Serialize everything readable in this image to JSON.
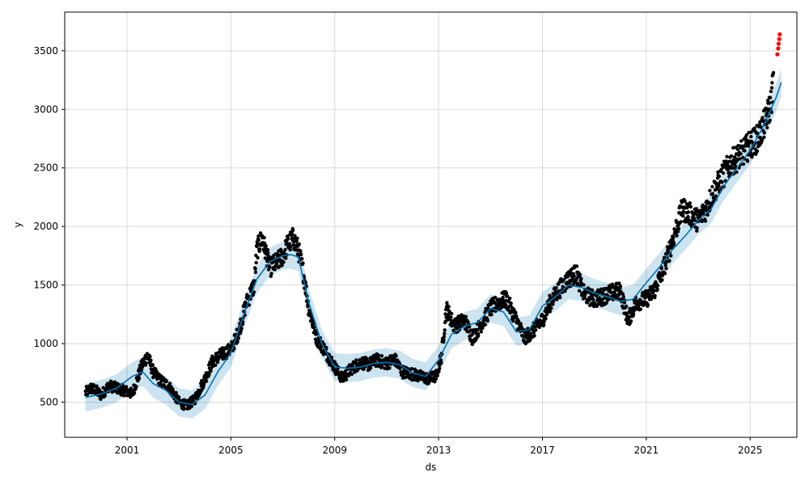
{
  "chart_data": {
    "type": "scatter",
    "title": "",
    "xlabel": "ds",
    "ylabel": "y",
    "x_is_year": true,
    "xlim": [
      1998.6,
      2026.8
    ],
    "ylim": [
      200,
      3830
    ],
    "x_ticks": [
      2001,
      2005,
      2009,
      2013,
      2017,
      2021,
      2025
    ],
    "x_tick_labels": [
      "2001",
      "2005",
      "2009",
      "2013",
      "2017",
      "2021",
      "2025"
    ],
    "y_ticks": [
      500,
      1000,
      1500,
      2000,
      2500,
      3000,
      3500
    ],
    "y_tick_labels": [
      "500",
      "1000",
      "1500",
      "2000",
      "2500",
      "3000",
      "3500"
    ],
    "grid": true,
    "colors": {
      "observed": "#000000",
      "forecast_line": "#0072b2",
      "uncertainty_band": "#0072b2",
      "changepoint_points": "#ff0000"
    },
    "series": [
      {
        "role": "trend_forecast",
        "x": [
          1999.4,
          2000.0,
          2000.6,
          2001.2,
          2001.6,
          2002.0,
          2002.5,
          2003.0,
          2003.5,
          2004.0,
          2004.5,
          2005.0,
          2005.5,
          2006.0,
          2006.5,
          2007.0,
          2007.3,
          2007.6,
          2008.0,
          2008.5,
          2009.0,
          2009.5,
          2010.0,
          2010.5,
          2011.0,
          2011.5,
          2012.0,
          2012.5,
          2013.0,
          2013.5,
          2014.0,
          2014.5,
          2015.0,
          2015.5,
          2016.0,
          2016.5,
          2017.0,
          2017.5,
          2018.0,
          2018.5,
          2019.0,
          2019.5,
          2020.0,
          2020.5,
          2021.0,
          2021.5,
          2022.0,
          2022.5,
          2023.0,
          2023.5,
          2024.0,
          2024.5,
          2025.0,
          2025.5,
          2026.0,
          2026.2
        ],
        "y": [
          540,
          570,
          620,
          720,
          760,
          660,
          600,
          500,
          480,
          560,
          760,
          920,
          1250,
          1550,
          1700,
          1750,
          1760,
          1740,
          1350,
          1000,
          800,
          790,
          800,
          830,
          840,
          820,
          750,
          720,
          860,
          1080,
          1150,
          1180,
          1300,
          1270,
          1100,
          1120,
          1320,
          1400,
          1500,
          1480,
          1430,
          1400,
          1360,
          1380,
          1520,
          1650,
          1800,
          1920,
          2050,
          2150,
          2350,
          2500,
          2650,
          2850,
          3100,
          3230
        ],
        "band_width": 120
      },
      {
        "role": "observed",
        "x": [
          1999.4,
          1999.6,
          1999.8,
          2000.0,
          2000.3,
          2000.6,
          2000.9,
          2001.2,
          2001.6,
          2001.8,
          2002.0,
          2002.3,
          2002.6,
          2003.0,
          2003.3,
          2003.6,
          2004.0,
          2004.3,
          2004.6,
          2005.0,
          2005.3,
          2005.6,
          2005.9,
          2006.0,
          2006.2,
          2006.5,
          2006.8,
          2007.0,
          2007.2,
          2007.4,
          2007.6,
          2007.8,
          2008.0,
          2008.3,
          2008.6,
          2009.0,
          2009.3,
          2009.6,
          2010.0,
          2010.3,
          2010.6,
          2011.0,
          2011.3,
          2011.6,
          2012.0,
          2012.3,
          2012.6,
          2012.9,
          2013.1,
          2013.3,
          2013.6,
          2014.0,
          2014.3,
          2014.6,
          2015.0,
          2015.3,
          2015.6,
          2016.0,
          2016.3,
          2016.6,
          2017.0,
          2017.3,
          2017.6,
          2018.0,
          2018.3,
          2018.6,
          2019.0,
          2019.3,
          2019.6,
          2020.0,
          2020.3,
          2020.6,
          2021.0,
          2021.3,
          2021.6,
          2021.9,
          2022.1,
          2022.4,
          2022.7,
          2023.0,
          2023.3,
          2023.6,
          2024.0,
          2024.3,
          2024.6,
          2025.0,
          2025.3,
          2025.6,
          2025.8,
          2025.9
        ],
        "y": [
          580,
          620,
          600,
          560,
          640,
          620,
          600,
          570,
          830,
          900,
          760,
          680,
          640,
          500,
          470,
          520,
          700,
          850,
          900,
          950,
          1100,
          1350,
          1500,
          1800,
          1900,
          1650,
          1700,
          1750,
          1850,
          1900,
          1800,
          1600,
          1300,
          1050,
          950,
          800,
          700,
          780,
          840,
          820,
          860,
          830,
          870,
          760,
          740,
          720,
          700,
          720,
          880,
          1300,
          1150,
          1200,
          1050,
          1150,
          1300,
          1350,
          1380,
          1200,
          1050,
          1100,
          1200,
          1350,
          1450,
          1550,
          1600,
          1420,
          1380,
          1400,
          1430,
          1450,
          1200,
          1350,
          1380,
          1450,
          1600,
          1800,
          1950,
          2150,
          2100,
          2050,
          2150,
          2300,
          2450,
          2550,
          2600,
          2700,
          2750,
          2900,
          3050,
          3250
        ]
      },
      {
        "role": "recent_points",
        "x": [
          2026.05,
          2026.08,
          2026.1,
          2026.12,
          2026.14
        ],
        "y": [
          3470,
          3520,
          3560,
          3600,
          3640
        ]
      }
    ]
  }
}
